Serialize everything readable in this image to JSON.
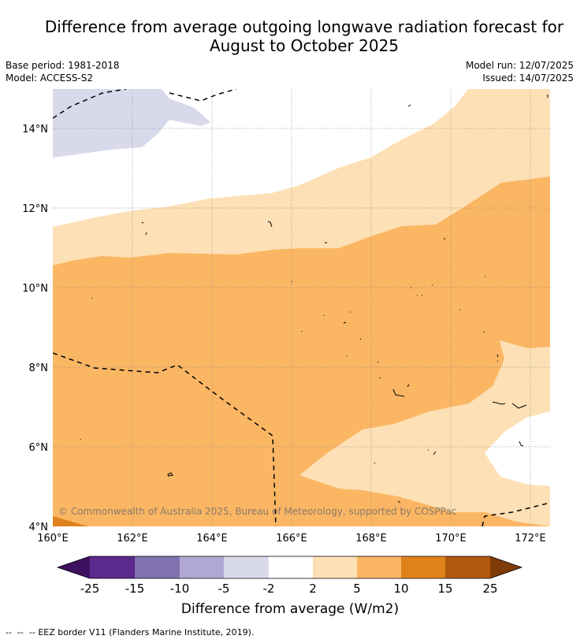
{
  "title_line1": "Difference from average outgoing longwave radiation forecast for",
  "title_line2": "August to October 2025",
  "meta": {
    "base_period": "Base period: 1981-2018",
    "model": "Model: ACCESS-S2",
    "model_run": "Model run: 12/07/2025",
    "issued": "Issued: 14/07/2025"
  },
  "map": {
    "lat_labels": [
      "14°N",
      "12°N",
      "10°N",
      "8°N",
      "6°N",
      "4°N"
    ],
    "lon_labels": [
      "160°E",
      "162°E",
      "164°E",
      "166°E",
      "168°E",
      "170°E",
      "172°E"
    ],
    "copyright": "© Commonwealth of Australia 2025, Bureau of Meteorology, supported by COSPPac"
  },
  "colorbar": {
    "tick_labels": [
      "-25",
      "-15",
      "-10",
      "-5",
      "-2",
      "2",
      "5",
      "10",
      "15",
      "25"
    ],
    "colors": [
      "#3f0f60",
      "#5b2a8c",
      "#8272b0",
      "#b0a8d2",
      "#d9d9ec",
      "#ffffff",
      "#fde0b5",
      "#fbb663",
      "#e0821c",
      "#b2590e",
      "#7f3b08"
    ],
    "label": "Difference from average (W/m2)"
  },
  "footnote": {
    "symbol": "--  --  --",
    "text": "EEZ border V11 (Flanders Marine Institute, 2019)."
  }
}
